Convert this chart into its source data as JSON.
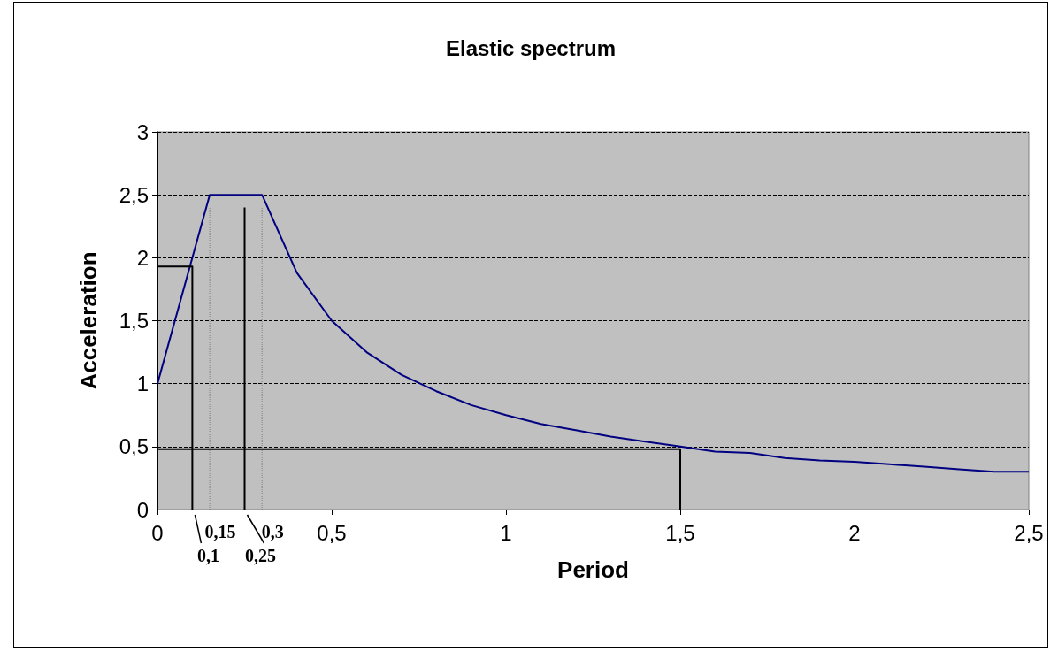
{
  "chart_data": {
    "type": "line",
    "title": "Elastic spectrum",
    "xlabel": "Period",
    "ylabel": "Acceleration",
    "xlim": [
      0,
      2.5
    ],
    "xticks": [
      {
        "value": 0,
        "label": "0"
      },
      {
        "value": 0.5,
        "label": "0,5"
      },
      {
        "value": 1,
        "label": "1"
      },
      {
        "value": 1.5,
        "label": "1,5"
      },
      {
        "value": 2,
        "label": "2"
      },
      {
        "value": 2.5,
        "label": "2,5"
      }
    ],
    "ylim": [
      0,
      3
    ],
    "yticks": [
      {
        "value": 0,
        "label": "0"
      },
      {
        "value": 0.5,
        "label": "0,5"
      },
      {
        "value": 1,
        "label": "1"
      },
      {
        "value": 1.5,
        "label": "1,5"
      },
      {
        "value": 2,
        "label": "2"
      },
      {
        "value": 2.5,
        "label": "2,5"
      },
      {
        "value": 3,
        "label": "3"
      }
    ],
    "grid": "y",
    "marker": "none",
    "series": [
      {
        "color": "#000080",
        "line_style": "solid",
        "x": [
          0,
          0.15,
          0.3,
          0.4,
          0.5,
          0.6,
          0.7,
          0.8,
          0.9,
          1.0,
          1.1,
          1.2,
          1.3,
          1.4,
          1.5,
          1.6,
          1.7,
          1.8,
          1.9,
          2.0,
          2.1,
          2.2,
          2.3,
          2.4,
          2.5
        ],
        "values": [
          1,
          2.5,
          2.5,
          1.88,
          1.5,
          1.25,
          1.07,
          0.94,
          0.83,
          0.75,
          0.68,
          0.63,
          0.58,
          0.54,
          0.5,
          0.46,
          0.45,
          0.41,
          0.39,
          0.38,
          0.36,
          0.34,
          0.32,
          0.3,
          0.3
        ]
      },
      {
        "color": "#000000",
        "line_style": "solid",
        "x": [
          0,
          0.1,
          0.1
        ],
        "values": [
          1.93,
          1.93,
          0
        ]
      },
      {
        "color": "#000000",
        "line_style": "solid",
        "x": [
          0,
          1.5,
          1.5
        ],
        "values": [
          0.48,
          0.48,
          0
        ]
      },
      {
        "color": "#000000",
        "line_style": "solid",
        "x": [
          0.25,
          0.25
        ],
        "values": [
          0,
          2.4
        ]
      },
      {
        "color": "#808080",
        "line_style": "dotted",
        "x": [
          0.15,
          0.15
        ],
        "values": [
          0,
          2.4
        ]
      },
      {
        "color": "#808080",
        "line_style": "dotted",
        "x": [
          0.3,
          0.3
        ],
        "values": [
          0,
          2.4
        ]
      }
    ],
    "annotations": [
      {
        "text": "0,1",
        "x": 0.1,
        "y": 0
      },
      {
        "text": "0,15",
        "x": 0.15,
        "y": 0
      },
      {
        "text": "0,25",
        "x": 0.25,
        "y": 0
      },
      {
        "text": "0,3",
        "x": 0.3,
        "y": 0
      }
    ]
  }
}
